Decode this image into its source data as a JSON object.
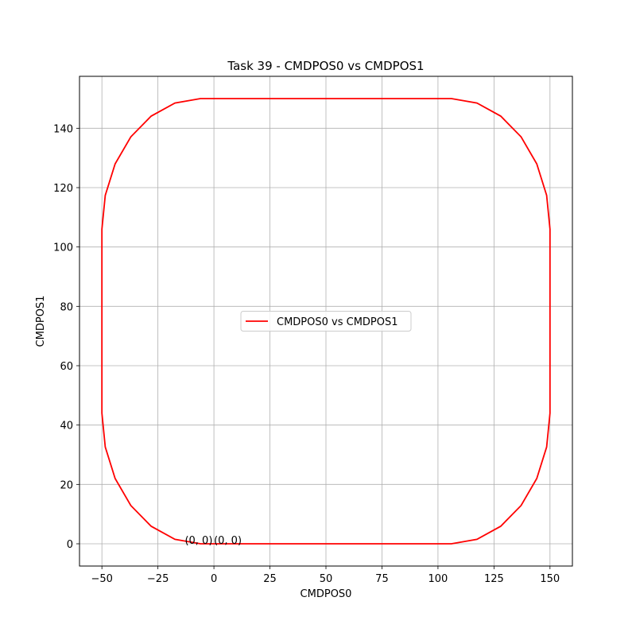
{
  "chart_data": {
    "type": "line",
    "title": "Task 39 - CMDPOS0 vs CMDPOS1",
    "xlabel": "CMDPOS0",
    "ylabel": "CMDPOS1",
    "xlim": [
      -60,
      160
    ],
    "ylim": [
      -7.5,
      157.5
    ],
    "xticks": [
      {
        "value": -50,
        "label": "−50"
      },
      {
        "value": -25,
        "label": "−25"
      },
      0,
      25,
      50,
      75,
      100,
      125,
      150
    ],
    "yticks": [
      0,
      20,
      40,
      60,
      80,
      100,
      120,
      140
    ],
    "grid": true,
    "legend": "center",
    "series": [
      {
        "name": "CMDPOS0 vs CMDPOS1",
        "color": "#ff0000",
        "x": [
          0,
          106,
          117.4,
          128,
          137.1,
          144.1,
          148.5,
          150,
          150,
          148.5,
          144.1,
          137.1,
          128,
          117.4,
          106,
          -6,
          -17.4,
          -28,
          -37.1,
          -44.1,
          -48.5,
          -50,
          -50,
          -48.5,
          -44.1,
          -37.1,
          -28,
          -17.4,
          -6,
          0
        ],
        "y": [
          0,
          0,
          1.5,
          5.9,
          12.9,
          22,
          32.6,
          44,
          106,
          117.4,
          128,
          137.1,
          144.1,
          148.5,
          150,
          150,
          148.5,
          144.1,
          137.1,
          128,
          117.4,
          106,
          44,
          32.6,
          22,
          12.9,
          5.9,
          1.5,
          0,
          0
        ]
      }
    ],
    "annotations": [
      {
        "text": "(0, 0)",
        "x": -13,
        "y": 0
      },
      {
        "text": "(0, 0)",
        "x": 0,
        "y": 0
      }
    ]
  }
}
